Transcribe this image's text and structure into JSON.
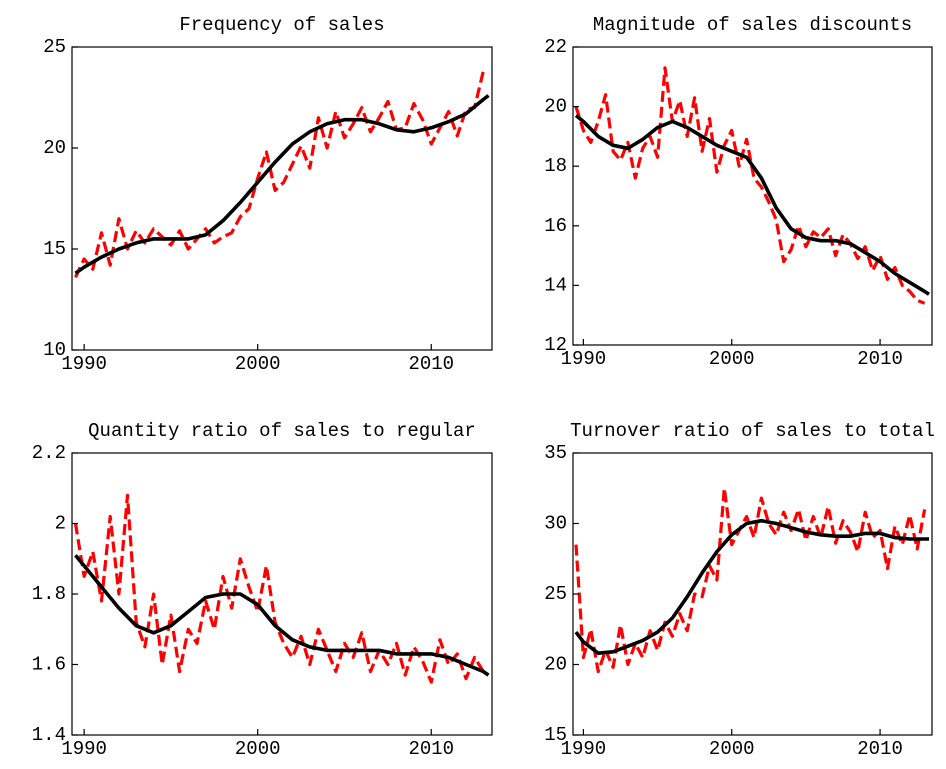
{
  "chart_data": [
    {
      "type": "line",
      "title": "Frequency of sales",
      "xlim": [
        1989.3,
        2013.5
      ],
      "xticks": [
        1990,
        2000,
        2010
      ],
      "ylim": [
        10,
        25
      ],
      "yticks": [
        10,
        15,
        20,
        25
      ],
      "series": [
        {
          "color": "#ff0000",
          "style": "dashed",
          "x": [
            1989.5,
            1990,
            1990.5,
            1991,
            1991.5,
            1992,
            1992.5,
            1993,
            1993.5,
            1994,
            1994.5,
            1995,
            1995.5,
            1996,
            1996.5,
            1997,
            1997.5,
            1998,
            1998.5,
            1999,
            1999.5,
            2000,
            2000.5,
            2001,
            2001.5,
            2002,
            2002.5,
            2003,
            2003.5,
            2004,
            2004.5,
            2005,
            2005.5,
            2006,
            2006.5,
            2007,
            2007.5,
            2008,
            2008.5,
            2009,
            2009.5,
            2010,
            2010.5,
            2011,
            2011.5,
            2012,
            2012.5,
            2013
          ],
          "values": [
            13.6,
            14.5,
            14.0,
            15.8,
            14.2,
            16.5,
            15.0,
            15.9,
            15.3,
            16.0,
            15.6,
            15.2,
            15.9,
            15.0,
            15.5,
            16.0,
            15.3,
            15.6,
            15.8,
            16.6,
            17.0,
            18.5,
            19.8,
            17.9,
            18.3,
            19.2,
            20.1,
            19.0,
            21.5,
            20.0,
            21.8,
            20.5,
            21.2,
            22.0,
            20.8,
            21.5,
            22.3,
            20.9,
            21.0,
            22.2,
            21.4,
            20.2,
            21.0,
            21.8,
            20.6,
            21.9,
            22.0,
            23.8
          ]
        },
        {
          "color": "#000000",
          "style": "solid",
          "x": [
            1989.5,
            1990,
            1991,
            1992,
            1993,
            1994,
            1995,
            1996,
            1997,
            1998,
            1999,
            2000,
            2001,
            2002,
            2003,
            2004,
            2005,
            2006,
            2007,
            2008,
            2009,
            2010,
            2011,
            2012,
            2013,
            2013.3
          ],
          "values": [
            13.8,
            14.1,
            14.6,
            15.0,
            15.3,
            15.5,
            15.5,
            15.5,
            15.7,
            16.4,
            17.3,
            18.3,
            19.3,
            20.2,
            20.8,
            21.2,
            21.4,
            21.4,
            21.2,
            20.9,
            20.8,
            21.0,
            21.3,
            21.7,
            22.4,
            22.6
          ]
        }
      ]
    },
    {
      "type": "line",
      "title": "Magnitude of sales discounts",
      "xlim": [
        1989.3,
        2013.5
      ],
      "xticks": [
        1990,
        2000,
        2010
      ],
      "ylim": [
        12,
        22
      ],
      "yticks": [
        12,
        14,
        16,
        18,
        20,
        22
      ],
      "series": [
        {
          "color": "#ff0000",
          "style": "dashed",
          "x": [
            1989.5,
            1990,
            1990.5,
            1991,
            1991.5,
            1992,
            1992.5,
            1993,
            1993.5,
            1994,
            1994.5,
            1995,
            1995.5,
            1996,
            1996.5,
            1997,
            1997.5,
            1998,
            1998.5,
            1999,
            1999.5,
            2000,
            2000.5,
            2001,
            2001.5,
            2002,
            2002.5,
            2003,
            2003.5,
            2004,
            2004.5,
            2005,
            2005.5,
            2006,
            2006.5,
            2007,
            2007.5,
            2008,
            2008.5,
            2009,
            2009.5,
            2010,
            2010.5,
            2011,
            2011.5,
            2012,
            2012.5,
            2013
          ],
          "values": [
            20.0,
            19.2,
            18.8,
            19.5,
            20.4,
            18.5,
            18.2,
            18.8,
            17.6,
            18.6,
            19.0,
            18.3,
            21.3,
            19.5,
            20.2,
            19.0,
            20.3,
            18.5,
            19.6,
            17.8,
            18.7,
            19.2,
            18.0,
            18.9,
            17.6,
            17.3,
            16.8,
            16.2,
            14.8,
            15.2,
            16.0,
            15.3,
            15.8,
            15.6,
            15.9,
            15.0,
            15.7,
            15.4,
            14.9,
            15.3,
            14.5,
            15.0,
            14.2,
            14.6,
            14.0,
            13.8,
            13.5,
            13.4
          ]
        },
        {
          "color": "#000000",
          "style": "solid",
          "x": [
            1989.5,
            1990,
            1991,
            1992,
            1993,
            1994,
            1995,
            1996,
            1997,
            1998,
            1999,
            2000,
            2001,
            2002,
            2003,
            2004,
            2005,
            2006,
            2007,
            2008,
            2009,
            2010,
            2011,
            2012,
            2013,
            2013.3
          ],
          "values": [
            19.7,
            19.5,
            19.0,
            18.7,
            18.6,
            18.9,
            19.3,
            19.5,
            19.3,
            19.0,
            18.7,
            18.5,
            18.3,
            17.6,
            16.6,
            15.9,
            15.6,
            15.5,
            15.5,
            15.4,
            15.1,
            14.8,
            14.4,
            14.1,
            13.8,
            13.7
          ]
        }
      ]
    },
    {
      "type": "line",
      "title": "Quantity ratio of sales to regular",
      "xlim": [
        1989.3,
        2013.5
      ],
      "xticks": [
        1990,
        2000,
        2010
      ],
      "ylim": [
        1.4,
        2.2
      ],
      "yticks": [
        1.4,
        1.6,
        1.8,
        2,
        2.2
      ],
      "series": [
        {
          "color": "#ff0000",
          "style": "dashed",
          "x": [
            1989.5,
            1990,
            1990.5,
            1991,
            1991.5,
            1992,
            1992.5,
            1993,
            1993.5,
            1994,
            1994.5,
            1995,
            1995.5,
            1996,
            1996.5,
            1997,
            1997.5,
            1998,
            1998.5,
            1999,
            1999.5,
            2000,
            2000.5,
            2001,
            2001.5,
            2002,
            2002.5,
            2003,
            2003.5,
            2004,
            2004.5,
            2005,
            2005.5,
            2006,
            2006.5,
            2007,
            2007.5,
            2008,
            2008.5,
            2009,
            2009.5,
            2010,
            2010.5,
            2011,
            2011.5,
            2012,
            2012.5,
            2013
          ],
          "values": [
            2.0,
            1.85,
            1.92,
            1.78,
            2.02,
            1.8,
            2.08,
            1.72,
            1.65,
            1.8,
            1.6,
            1.74,
            1.58,
            1.7,
            1.66,
            1.78,
            1.7,
            1.85,
            1.76,
            1.9,
            1.82,
            1.75,
            1.88,
            1.72,
            1.66,
            1.62,
            1.68,
            1.6,
            1.7,
            1.64,
            1.58,
            1.66,
            1.62,
            1.69,
            1.58,
            1.64,
            1.6,
            1.66,
            1.57,
            1.65,
            1.61,
            1.55,
            1.67,
            1.6,
            1.63,
            1.56,
            1.62,
            1.58
          ]
        },
        {
          "color": "#000000",
          "style": "solid",
          "x": [
            1989.5,
            1990,
            1991,
            1992,
            1993,
            1994,
            1995,
            1996,
            1997,
            1998,
            1999,
            2000,
            2001,
            2002,
            2003,
            2004,
            2005,
            2006,
            2007,
            2008,
            2009,
            2010,
            2011,
            2012,
            2013,
            2013.3
          ],
          "values": [
            1.91,
            1.88,
            1.82,
            1.76,
            1.71,
            1.69,
            1.71,
            1.75,
            1.79,
            1.8,
            1.8,
            1.77,
            1.71,
            1.67,
            1.65,
            1.64,
            1.64,
            1.64,
            1.64,
            1.63,
            1.63,
            1.63,
            1.62,
            1.6,
            1.58,
            1.57
          ]
        }
      ]
    },
    {
      "type": "line",
      "title": "Turnover ratio of sales to total",
      "xlim": [
        1989.3,
        2013.5
      ],
      "xticks": [
        1990,
        2000,
        2010
      ],
      "ylim": [
        15,
        35
      ],
      "yticks": [
        15,
        20,
        25,
        30,
        35
      ],
      "series": [
        {
          "color": "#ff0000",
          "style": "dashed",
          "x": [
            1989.5,
            1990,
            1990.5,
            1991,
            1991.5,
            1992,
            1992.5,
            1993,
            1993.5,
            1994,
            1994.5,
            1995,
            1995.5,
            1996,
            1996.5,
            1997,
            1997.5,
            1998,
            1998.5,
            1999,
            1999.5,
            2000,
            2000.5,
            2001,
            2001.5,
            2002,
            2002.5,
            2003,
            2003.5,
            2004,
            2004.5,
            2005,
            2005.5,
            2006,
            2006.5,
            2007,
            2007.5,
            2008,
            2008.5,
            2009,
            2009.5,
            2010,
            2010.5,
            2011,
            2011.5,
            2012,
            2012.5,
            2013
          ],
          "values": [
            28.5,
            20.5,
            22.5,
            19.5,
            21.0,
            19.8,
            22.8,
            20.0,
            21.5,
            20.5,
            22.4,
            21.0,
            23.0,
            22.0,
            23.6,
            22.4,
            25.0,
            24.8,
            27.0,
            26.0,
            32.5,
            28.5,
            29.5,
            30.5,
            29.0,
            31.8,
            30.0,
            29.2,
            30.8,
            29.5,
            31.0,
            28.8,
            30.5,
            29.0,
            31.2,
            28.6,
            30.2,
            29.4,
            28.0,
            30.8,
            29.0,
            29.5,
            26.8,
            29.8,
            28.5,
            30.6,
            28.2,
            31.0
          ]
        },
        {
          "color": "#000000",
          "style": "solid",
          "x": [
            1989.5,
            1990,
            1991,
            1992,
            1993,
            1994,
            1995,
            1996,
            1997,
            1998,
            1999,
            2000,
            2001,
            2002,
            2003,
            2004,
            2005,
            2006,
            2007,
            2008,
            2009,
            2010,
            2011,
            2012,
            2013,
            2013.3
          ],
          "values": [
            22.3,
            21.6,
            20.8,
            20.9,
            21.3,
            21.7,
            22.3,
            23.3,
            24.8,
            26.5,
            28.0,
            29.2,
            30.0,
            30.2,
            30.0,
            29.7,
            29.4,
            29.2,
            29.1,
            29.1,
            29.3,
            29.3,
            29.0,
            28.9,
            28.9,
            28.9
          ]
        }
      ]
    }
  ]
}
